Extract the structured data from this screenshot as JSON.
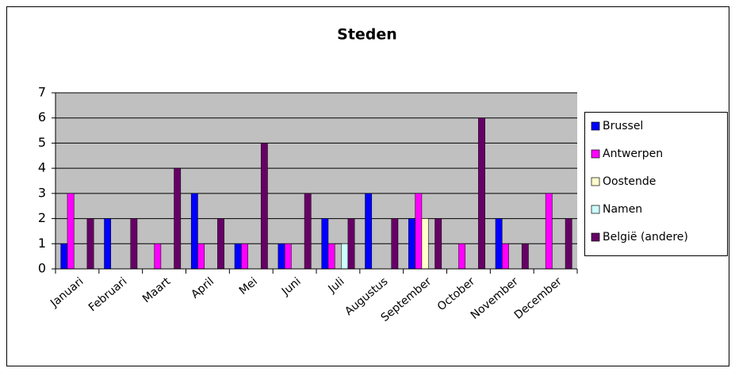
{
  "chart_data": {
    "type": "bar",
    "title": "Steden",
    "categories": [
      "Januari",
      "Februari",
      "Maart",
      "April",
      "Mei",
      "Juni",
      "Juli",
      "Augustus",
      "September",
      "October",
      "November",
      "December"
    ],
    "series": [
      {
        "name": "Brussel",
        "color": "#0000ff",
        "values": [
          1,
          2,
          0,
          3,
          1,
          1,
          2,
          3,
          2,
          0,
          2,
          0
        ]
      },
      {
        "name": "Antwerpen",
        "color": "#ff00ff",
        "values": [
          3,
          0,
          1,
          1,
          1,
          1,
          1,
          0,
          3,
          1,
          1,
          3
        ]
      },
      {
        "name": "Oostende",
        "color": "#ffffcc",
        "values": [
          0,
          0,
          0,
          0,
          0,
          0,
          0,
          0,
          2,
          0,
          0,
          0
        ]
      },
      {
        "name": "Namen",
        "color": "#ccffff",
        "values": [
          0,
          0,
          0,
          0,
          0,
          0,
          1,
          0,
          0,
          0,
          0,
          0
        ]
      },
      {
        "name": "België (andere)",
        "color": "#660066",
        "values": [
          2,
          2,
          4,
          2,
          5,
          3,
          2,
          2,
          2,
          6,
          1,
          2
        ]
      }
    ],
    "ylim": [
      0,
      7
    ],
    "yticks": [
      0,
      1,
      2,
      3,
      4,
      5,
      6,
      7
    ],
    "grid": true,
    "legend": "right"
  }
}
